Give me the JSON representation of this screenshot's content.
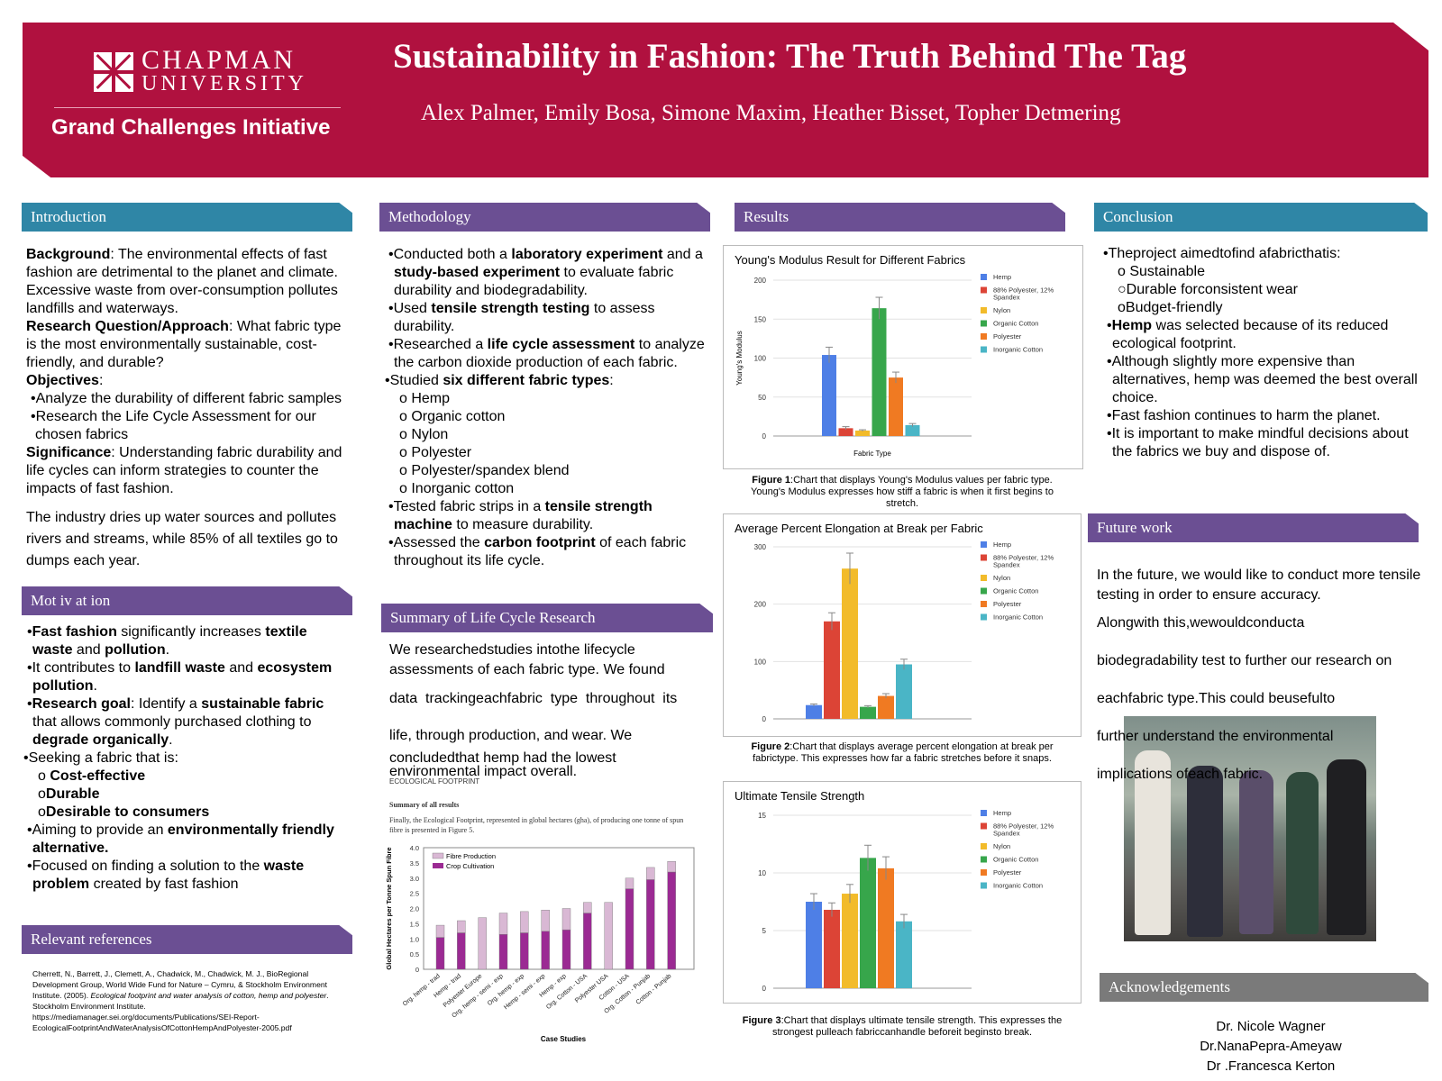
{
  "header": {
    "university_line1": "CHAPMAN",
    "university_line2": "UNIVERSITY",
    "initiative": "Grand Challenges Initiative",
    "title": "Sustainability in Fashion: The Truth Behind The Tag",
    "authors": "Alex Palmer, Emily Bosa, Simone Maxim, Heather Bisset, Topher Detmering"
  },
  "introduction": {
    "heading": "Introduction",
    "background_label": "Background",
    "background_text": ": The environmental effects of fast fashion are detrimental to the planet and climate. Excessive waste from over-consumption pollutes landfills and waterways.",
    "rq_label": "Research Question/Approach",
    "rq_text": ": What fabric type is the most environmentally sustainable, cost-friendly, and durable?",
    "obj_label": "Objectives",
    "obj_text": ":",
    "obj1": "•Analyze the durability of different fabric samples",
    "obj2": "•Research the Life Cycle Assessment for our chosen fabrics",
    "sig_label": "Significance",
    "sig_text": ": Understanding fabric durability and life cycles can inform strategies to counter the impacts of fast fashion.",
    "industry": "The industry dries up water sources and pollutes rivers and streams, while 85% of all textiles go to dumps each year."
  },
  "motivation": {
    "heading": "Mot iv at ion",
    "b1a": "Fast fashion",
    "b1b": " significantly increases ",
    "b1c": "textile waste",
    "b1d": " and ",
    "b1e": "pollution",
    "b1f": ".",
    "b2a": "•It contributes to ",
    "b2b": "landfill waste",
    "b2c": " and ",
    "b2d": "ecosystem pollution",
    "b2e": ".",
    "b3a": "Research goal",
    "b3b": ": Identify a ",
    "b3c": "sustainable fabric",
    "b3d": " that allows commonly purchased clothing to ",
    "b3e": "degrade organically",
    "b3f": ".",
    "b4": "•Seeking a fabric that is:",
    "s1a": "o ",
    "s1b": "Cost-effective",
    "s2a": "o",
    "s2b": "Durable",
    "s3a": "o",
    "s3b": "Desirable to consumers",
    "b5a": "•Aiming to provide an ",
    "b5b": "environmentally friendly alternative.",
    "b6a": "•Focused on finding a solution to the ",
    "b6b": "waste problem",
    "b6c": " created by fast fashion"
  },
  "references": {
    "heading": "Relevant references",
    "text1": "Cherrett, N., Barrett, J., Clemett, A., Chadwick, M., Chadwick, M. J., BioRegional Development Group, World Wide Fund for Nature – Cymru, & Stockholm Environment Institute. (2005). ",
    "text_italic": "Ecological footprint and water analysis of cotton, hemp and polyester",
    "text2": ". Stockholm Environment Institute. https://mediamanager.sei.org/documents/Publications/SEI-Report-EcologicalFootprintAndWaterAnalysisOfCottonHempAndPolyester-2005.pdf"
  },
  "methodology": {
    "heading": "Methodology",
    "m1a": "•Conducted both a ",
    "m1b": "laboratory experiment",
    "m1c": " and a ",
    "m1d": "study-based experiment",
    "m1e": " to evaluate fabric durability and biodegradability.",
    "m2a": "•Used ",
    "m2b": "tensile strength testing",
    "m2c": " to assess durability.",
    "m3a": "•Researched a ",
    "m3b": "life cycle assessment",
    "m3c": " to analyze the carbon dioxide production of each fabric.",
    "m4a": "•Studied ",
    "m4b": "six different fabric types",
    "m4c": ":",
    "fabrics": [
      "o Hemp",
      "o Organic cotton",
      "o Nylon",
      "o Polyester",
      "o Polyester/spandex blend",
      "o Inorganic cotton"
    ],
    "m5a": "•Tested fabric strips in a ",
    "m5b": "tensile strength machine",
    "m5c": " to measure durability.",
    "m6a": "•Assessed the ",
    "m6b": "carbon footprint",
    "m6c": " of each fabric throughout its life cycle."
  },
  "lifecycle": {
    "heading": "Summary of Life Cycle Research",
    "l1": "We researchedstudies intothe lifecycle",
    "l2": "assessments of each fabric type. We found",
    "l3": "data  trackingeachfabric  type  throughout  its",
    "l4": "life, through production, and wear. We",
    "l5": "concludedthat hemp had the lowest",
    "l6": "environmental impact overall.",
    "fig_header": "ECOLOGICAL FOOTPRINT",
    "fig_sub": "Summary of all results",
    "fig_desc": "Finally, the Ecological Footprint, represented in global hectares (gha), of producing one tonne of spun fibre is presented in Figure 5."
  },
  "results": {
    "heading": "Results",
    "cap1_bold": "Figure 1",
    "cap1": ":Chart that displays Young's Modulus values per fabric type. Young's Modulus expresses how stiff a fabric is when it first begins to stretch.",
    "cap2_bold": "Figure 2",
    "cap2": ":Chart that displays average percent elongation at break per fabrictype. This expresses how far a fabric stretches before it snaps.",
    "cap3_bold": "Figure 3",
    "cap3": ":Chart that displays ultimate tensile strength. This expresses the strongest pulleach fabriccanhandle beforeit beginsto break."
  },
  "conclusion": {
    "heading": "Conclusion",
    "c1": "•Theproject aimedtofind afabricthatis:",
    "c1a": "o Sustainable",
    "c1b": "○Durable forconsistent wear",
    "c1c": "oBudget-friendly",
    "c2a": "•",
    "c2b": "Hemp",
    "c2c": " was selected because of its reduced ecological footprint.",
    "c3": "•Although slightly more expensive than alternatives, hemp was deemed the best overall choice.",
    "c4": "•Fast fashion continues to harm the planet.",
    "c5": "•It is important to make mindful decisions about the fabrics we buy and dispose of."
  },
  "future": {
    "heading": "Future work",
    "f1": "In the future, we would like to conduct more tensile testing in order to ensure accuracy.",
    "f2": "Alongwith this,wewouldconducta",
    "f3": "biodegradability test to further our research on",
    "f4": "eachfabric type.This could beusefulto",
    "f5": "further understand the environmental",
    "f6": "implications ofeach fabric."
  },
  "acknowledgements": {
    "heading": "Acknowledgements",
    "names": [
      "Dr. Nicole Wagner",
      "Dr.NanaPepra-Ameyaw",
      "Dr .Francesca Kerton"
    ]
  },
  "colors": {
    "header": "#b0113f",
    "teal": "#2f86a6",
    "purple": "#6b4f93",
    "hemp": "#4e7fe6",
    "polyspandex": "#dc4436",
    "nylon": "#f2bb2a",
    "organic": "#37a64b",
    "polyester": "#f07a22",
    "inorganic": "#4ab5c6",
    "fibre": "#d9b8d4",
    "crop": "#9b2a93"
  },
  "chart_data": [
    {
      "type": "bar",
      "title": "Young's Modulus Result for Different Fabrics",
      "xlabel": "Fabric Type",
      "ylabel": "Young's Modulus",
      "ylim": [
        0,
        200
      ],
      "yticks": [
        0,
        50,
        100,
        150,
        200
      ],
      "legend_position": "right",
      "series": [
        {
          "name": "Hemp",
          "values": [
            104
          ],
          "error": 10
        },
        {
          "name": "88% Polyester, 12% Spandex",
          "values": [
            10
          ],
          "error": 2
        },
        {
          "name": "Nylon",
          "values": [
            7
          ],
          "error": 1
        },
        {
          "name": "Organic Cotton",
          "values": [
            164
          ],
          "error": 14
        },
        {
          "name": "Polyester",
          "values": [
            75
          ],
          "error": 7
        },
        {
          "name": "Inorganic Cotton",
          "values": [
            14
          ],
          "error": 2
        }
      ]
    },
    {
      "type": "bar",
      "title": "Average Percent Elongation at Break per Fabric",
      "ylim": [
        0,
        300
      ],
      "yticks": [
        0,
        100,
        200,
        300
      ],
      "legend_position": "right",
      "series": [
        {
          "name": "Hemp",
          "values": [
            24
          ],
          "error": 2
        },
        {
          "name": "88% Polyester, 12% Spandex",
          "values": [
            170
          ],
          "error": 15
        },
        {
          "name": "Nylon",
          "values": [
            262
          ],
          "error": 27
        },
        {
          "name": "Organic Cotton",
          "values": [
            21
          ],
          "error": 2
        },
        {
          "name": "Polyester",
          "values": [
            40
          ],
          "error": 4
        },
        {
          "name": "Inorganic Cotton",
          "values": [
            95
          ],
          "error": 9
        }
      ]
    },
    {
      "type": "bar",
      "title": "Ultimate Tensile Strength",
      "ylim": [
        0,
        15
      ],
      "yticks": [
        0,
        5,
        10,
        15
      ],
      "legend_position": "right",
      "series": [
        {
          "name": "Hemp",
          "values": [
            7.5
          ],
          "error": 0.7
        },
        {
          "name": "88% Polyester, 12% Spandex",
          "values": [
            6.8
          ],
          "error": 0.6
        },
        {
          "name": "Nylon",
          "values": [
            8.2
          ],
          "error": 0.8
        },
        {
          "name": "Organic Cotton",
          "values": [
            11.3
          ],
          "error": 1.1
        },
        {
          "name": "Polyester",
          "values": [
            10.4
          ],
          "error": 1
        },
        {
          "name": "Inorganic Cotton",
          "values": [
            5.8
          ],
          "error": 0.6
        }
      ]
    },
    {
      "type": "bar",
      "stacked": true,
      "xlabel": "Case Studies",
      "ylabel": "Global Hectares per Tonne Spun Fibre",
      "ylim": [
        0,
        4.0
      ],
      "yticks": [
        "0",
        "0.5",
        "1.0",
        "1.5",
        "2.0",
        "2.5",
        "3.0",
        "3.5",
        "4.0"
      ],
      "legend_position": "top-left",
      "categories": [
        "Org. hemp - trad",
        "Hemp - trad",
        "Polyester Europe",
        "Org. hemp - semi - exp",
        "Org. hemp - exp",
        "Hemp - semi - exp",
        "Hemp - exp",
        "Org. Cotton - USA",
        "Polyester USA",
        "Cotton - USA",
        "Org. Cotton - Punjab",
        "Cotton - Punjab"
      ],
      "series": [
        {
          "name": "Crop Cultivation",
          "values": [
            1.05,
            1.2,
            0,
            1.15,
            1.2,
            1.25,
            1.3,
            1.85,
            0,
            2.65,
            2.95,
            3.2
          ]
        },
        {
          "name": "Fibre Production",
          "values": [
            0.4,
            0.4,
            1.7,
            0.7,
            0.7,
            0.7,
            0.7,
            0.35,
            2.2,
            0.35,
            0.4,
            0.35
          ]
        }
      ]
    }
  ]
}
